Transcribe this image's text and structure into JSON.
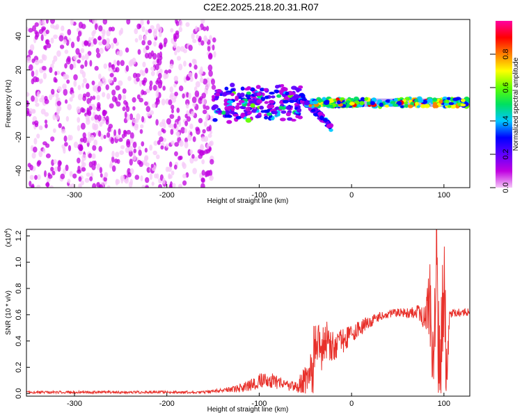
{
  "title": "C2E2.2025.218.20.31.R07",
  "chart_data": [
    {
      "type": "heatmap",
      "title": "C2E2.2025.218.20.31.R07",
      "xlabel": "Height of straight line (km)",
      "ylabel": "Frequency (Hz)",
      "xlim": [
        -352,
        128
      ],
      "ylim": [
        -50,
        50
      ],
      "xticks": [
        "-300",
        "-200",
        "-100",
        "0",
        "100"
      ],
      "xtick_values": [
        -300,
        -200,
        -100,
        0,
        100
      ],
      "yticks": [
        "40",
        "20",
        "0",
        "-20",
        "-40"
      ],
      "ytick_values": [
        40,
        20,
        0,
        -20,
        -40
      ],
      "colorbar": {
        "label": "Normalized spectral amplitude",
        "ticks": [
          "0.0",
          "0.2",
          "0.4",
          "0.6",
          "0.8"
        ],
        "tick_values": [
          0.0,
          0.2,
          0.4,
          0.6,
          0.8
        ],
        "range": [
          0,
          1
        ],
        "colormap": [
          "#f6c8f8",
          "#c000e0",
          "#6000ff",
          "#0000ff",
          "#00c8ff",
          "#00e060",
          "#60ff00",
          "#ffff00",
          "#ff8000",
          "#ff0000",
          "#ff00a0"
        ]
      },
      "regions": [
        {
          "x_range": [
            -352,
            -148
          ],
          "y_range": [
            -50,
            50
          ],
          "amplitude": 0.12,
          "pattern": "noise"
        },
        {
          "x_range": [
            -150,
            -55
          ],
          "y_range": [
            -12,
            12
          ],
          "amplitude": 0.35,
          "pattern": "cluster"
        },
        {
          "x_range": [
            -55,
            -22
          ],
          "y_range": [
            -20,
            8
          ],
          "amplitude": 0.3,
          "pattern": "descending"
        },
        {
          "x_range": [
            -45,
            128
          ],
          "y_range": [
            -3,
            4
          ],
          "amplitude": 0.6,
          "pattern": "band"
        }
      ],
      "grid": false,
      "legend": "colorbar-right"
    },
    {
      "type": "line",
      "xlabel": "Height of straight line (km)",
      "ylabel": "SNR (10 * v/v)",
      "multiplier": "(x10",
      "multiplier_exp": "4",
      "xlim": [
        -352,
        128
      ],
      "ylim": [
        -0.02,
        1.25
      ],
      "xticks": [
        "-300",
        "-200",
        "-100",
        "0",
        "100"
      ],
      "xtick_values": [
        -300,
        -200,
        -100,
        0,
        100
      ],
      "yticks": [
        "0.0",
        "0.2",
        "0.4",
        "0.6",
        "0.8",
        "1.0",
        "1.2"
      ],
      "ytick_values": [
        0.0,
        0.2,
        0.4,
        0.6,
        0.8,
        1.0,
        1.2
      ],
      "series": [
        {
          "color": "#e8302a",
          "x": [
            -350,
            -300,
            -250,
            -200,
            -160,
            -130,
            -115,
            -100,
            -90,
            -80,
            -70,
            -60,
            -50,
            -42,
            -38,
            -35,
            -30,
            -25,
            -20,
            -10,
            0,
            10,
            20,
            30,
            40,
            50,
            60,
            70,
            75,
            80,
            85,
            88,
            92,
            95,
            100,
            103,
            106,
            110,
            120,
            128
          ],
          "y": [
            0.01,
            0.01,
            0.01,
            0.01,
            0.01,
            0.03,
            0.05,
            0.09,
            0.11,
            0.08,
            0.06,
            0.05,
            0.08,
            0.2,
            0.45,
            0.3,
            0.38,
            0.42,
            0.35,
            0.4,
            0.45,
            0.5,
            0.55,
            0.58,
            0.6,
            0.62,
            0.61,
            0.62,
            0.6,
            0.58,
            0.7,
            0.2,
            1.2,
            0.1,
            0.95,
            0.05,
            0.62,
            0.61,
            0.62,
            0.62
          ],
          "noise": [
            0.01,
            0.01,
            0.01,
            0.01,
            0.01,
            0.02,
            0.04,
            0.06,
            0.07,
            0.05,
            0.04,
            0.05,
            0.15,
            0.25,
            0.25,
            0.2,
            0.18,
            0.16,
            0.12,
            0.1,
            0.07,
            0.06,
            0.05,
            0.04,
            0.03,
            0.03,
            0.04,
            0.05,
            0.08,
            0.1,
            0.3,
            0.45,
            0.55,
            0.5,
            0.45,
            0.3,
            0.05,
            0.03,
            0.03,
            0.03
          ]
        }
      ],
      "grid": false
    }
  ]
}
